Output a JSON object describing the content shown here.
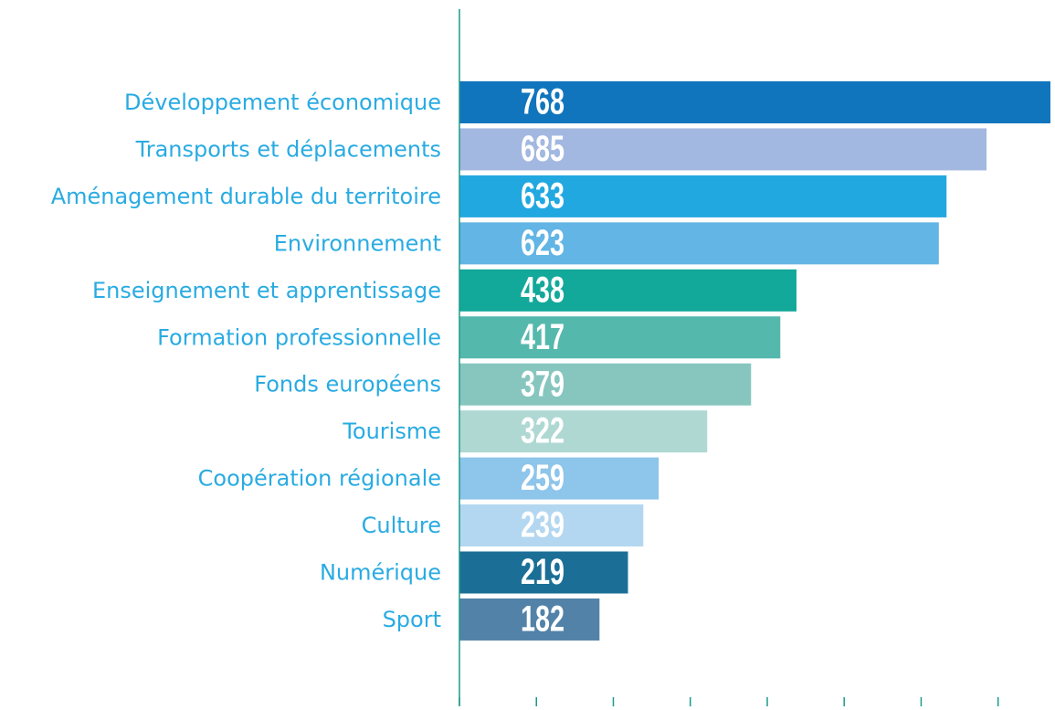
{
  "chart_data": {
    "type": "barh",
    "categories": [
      "Développement économique",
      "Transports et déplacements",
      "Aménagement durable du territoire",
      "Environnement",
      "Enseignement et apprentissage",
      "Formation professionnelle",
      "Fonds européens",
      "Tourisme",
      "Coopération régionale",
      "Culture",
      "Numérique",
      "Sport"
    ],
    "values": [
      768,
      685,
      633,
      623,
      438,
      417,
      379,
      322,
      259,
      239,
      219,
      182
    ],
    "colors": [
      "#1075bd",
      "#a3b8e0",
      "#22a8e0",
      "#62b5e5",
      "#12a89a",
      "#55b8ad",
      "#86c6bf",
      "#afd8d3",
      "#8ec5ea",
      "#b3d7f0",
      "#1b6f96",
      "#5282a8"
    ],
    "xlim": [
      0,
      800
    ],
    "xticks": [
      0,
      100,
      200,
      300,
      400,
      500,
      600,
      700
    ]
  }
}
